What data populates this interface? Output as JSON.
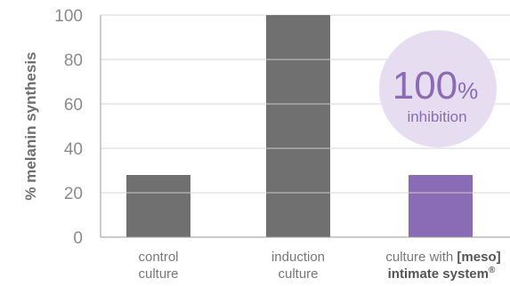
{
  "chart_data": {
    "type": "bar",
    "title": "",
    "xlabel": "",
    "ylabel": "% melanin synthesis",
    "ylim": [
      0,
      100
    ],
    "yticks": [
      0,
      20,
      40,
      60,
      80,
      100
    ],
    "grid": true,
    "categories": [
      {
        "line1": "control",
        "line2": "culture"
      },
      {
        "line1": "induction",
        "line2": "culture"
      },
      {
        "line1": "culture with ",
        "line1_bold": "[meso]",
        "line2": "intimate system",
        "line2_sup": "®"
      }
    ],
    "values": [
      28,
      100,
      28
    ],
    "bar_colors": [
      "#707070",
      "#707070",
      "#8a6bb5"
    ]
  },
  "badge": {
    "value": "100",
    "unit": "%",
    "label": "inhibition",
    "fill": "#e6ddf0",
    "text_color": "#8a6bb5"
  }
}
